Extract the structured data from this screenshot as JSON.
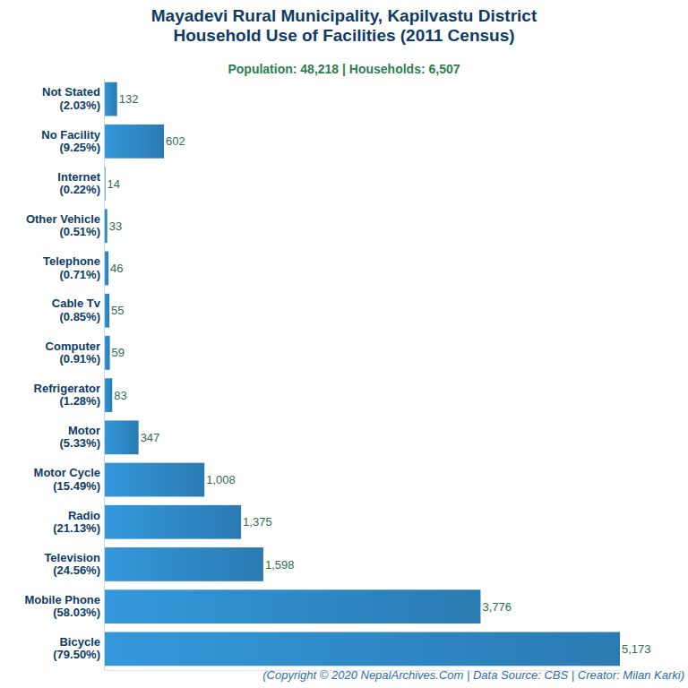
{
  "chart_data": {
    "type": "bar",
    "orientation": "horizontal",
    "title": [
      "Mayadevi Rural Municipality, Kapilvastu District",
      "Household Use of Facilities (2011 Census)"
    ],
    "subtitle": "Population: 48,218 | Households: 6,507",
    "source": "(Copyright © 2020 NepalArchives.Com | Data Source: CBS | Creator: Milan Karki)",
    "categories": [
      "Not Stated",
      "No Facility",
      "Internet",
      "Other Vehicle",
      "Telephone",
      "Cable Tv",
      "Computer",
      "Refrigerator",
      "Motor",
      "Motor Cycle",
      "Radio",
      "Television",
      "Mobile Phone",
      "Bicycle"
    ],
    "category_sublabels": [
      "(2.03%)",
      "(9.25%)",
      "(0.22%)",
      "(0.51%)",
      "(0.71%)",
      "(0.85%)",
      "(0.91%)",
      "(1.28%)",
      "(5.33%)",
      "(15.49%)",
      "(21.13%)",
      "(24.56%)",
      "(58.03%)",
      "(79.50%)"
    ],
    "values": [
      132,
      602,
      14,
      33,
      46,
      55,
      59,
      83,
      347,
      1008,
      1375,
      1598,
      3776,
      5173
    ],
    "value_labels": [
      "132",
      "602",
      "14",
      "33",
      "46",
      "55",
      "59",
      "83",
      "347",
      "1,008",
      "1,375",
      "1,598",
      "3,776",
      "5,173"
    ],
    "color": "#3498db",
    "xlim": [
      0,
      5173
    ],
    "data_labels": true,
    "tick_labels": false,
    "grid": false
  }
}
